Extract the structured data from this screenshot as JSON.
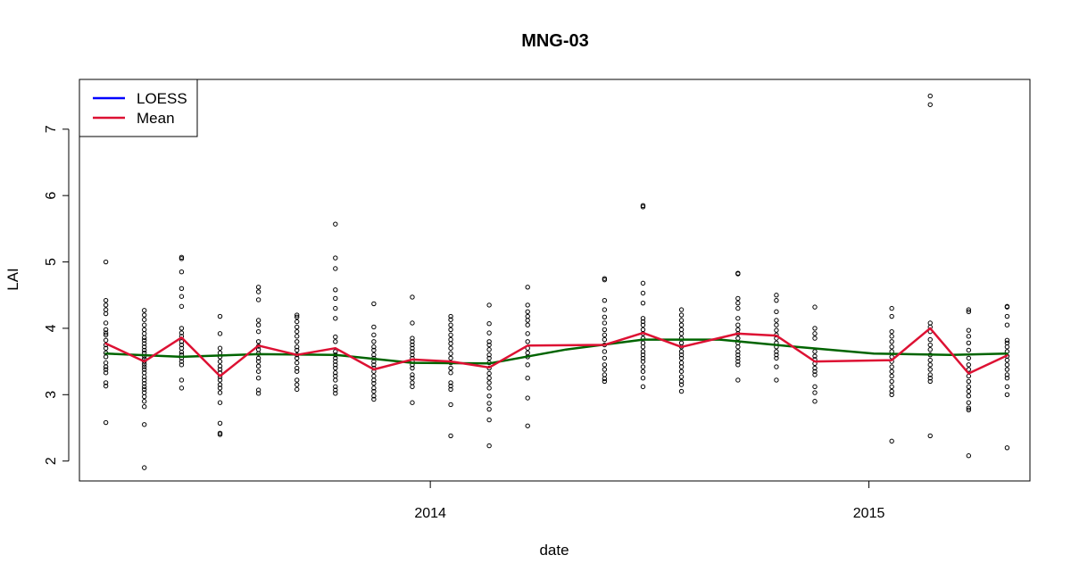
{
  "chart_data": {
    "type": "scatter",
    "title": "MNG-03",
    "xlabel": "date",
    "ylabel": "LAI",
    "x_range": [
      "2013-03-15",
      "2015-05-15"
    ],
    "ylim": [
      1.7,
      7.75
    ],
    "x_ticks": [
      {
        "date": "2014-01-01",
        "label": "2014"
      },
      {
        "date": "2015-01-01",
        "label": "2015"
      }
    ],
    "y_ticks": [
      2,
      3,
      4,
      5,
      6,
      7
    ],
    "grid": false,
    "legend": {
      "position": "top-left",
      "entries": [
        {
          "label": "LOESS",
          "color": "#0000ff"
        },
        {
          "label": "Mean",
          "color": "#dd1133"
        }
      ]
    },
    "colors": {
      "points": "#000000",
      "mean": "#dd1133",
      "loess_line": "#006400"
    },
    "points": [
      {
        "date": "2013-04-06",
        "values": [
          5.0,
          4.42,
          4.35,
          4.28,
          4.22,
          4.08,
          3.98,
          3.93,
          3.9,
          3.82,
          3.75,
          3.7,
          3.63,
          3.57,
          3.48,
          3.42,
          3.38,
          3.33,
          3.18,
          3.13,
          2.58
        ]
      },
      {
        "date": "2013-05-08",
        "values": [
          4.27,
          4.2,
          4.13,
          4.05,
          3.98,
          3.92,
          3.86,
          3.82,
          3.77,
          3.72,
          3.67,
          3.63,
          3.58,
          3.54,
          3.5,
          3.46,
          3.42,
          3.38,
          3.33,
          3.27,
          3.22,
          3.17,
          3.12,
          3.08,
          3.03,
          2.97,
          2.9,
          2.82,
          2.55,
          1.9
        ]
      },
      {
        "date": "2013-06-08",
        "values": [
          5.07,
          5.05,
          4.85,
          4.6,
          4.48,
          4.33,
          4.0,
          3.93,
          3.88,
          3.8,
          3.75,
          3.7,
          3.64,
          3.6,
          3.55,
          3.5,
          3.45,
          3.22,
          3.1
        ]
      },
      {
        "date": "2013-07-10",
        "values": [
          4.18,
          3.92,
          3.7,
          3.63,
          3.57,
          3.5,
          3.43,
          3.38,
          3.33,
          3.27,
          3.22,
          3.15,
          3.1,
          3.03,
          2.88,
          2.57,
          2.42,
          2.4
        ]
      },
      {
        "date": "2013-08-11",
        "values": [
          4.62,
          4.55,
          4.43,
          4.12,
          4.05,
          3.95,
          3.8,
          3.73,
          3.68,
          3.62,
          3.55,
          3.5,
          3.43,
          3.35,
          3.25,
          3.07,
          3.02
        ]
      },
      {
        "date": "2013-09-12",
        "values": [
          4.2,
          4.17,
          4.1,
          4.02,
          3.95,
          3.88,
          3.8,
          3.72,
          3.67,
          3.6,
          3.55,
          3.48,
          3.4,
          3.35,
          3.22,
          3.15,
          3.08
        ]
      },
      {
        "date": "2013-10-14",
        "values": [
          5.57,
          5.06,
          4.9,
          4.58,
          4.45,
          4.3,
          4.15,
          3.87,
          3.8,
          3.65,
          3.6,
          3.55,
          3.5,
          3.45,
          3.4,
          3.33,
          3.28,
          3.22,
          3.12,
          3.07,
          3.02
        ]
      },
      {
        "date": "2013-11-15",
        "values": [
          4.37,
          4.02,
          3.9,
          3.8,
          3.72,
          3.67,
          3.6,
          3.55,
          3.5,
          3.45,
          3.4,
          3.35,
          3.28,
          3.22,
          3.17,
          3.1,
          3.05,
          2.98,
          2.93
        ]
      },
      {
        "date": "2013-12-17",
        "values": [
          4.47,
          4.08,
          3.85,
          3.8,
          3.75,
          3.7,
          3.65,
          3.6,
          3.55,
          3.5,
          3.45,
          3.4,
          3.3,
          3.25,
          3.18,
          3.12,
          2.88
        ]
      },
      {
        "date": "2014-01-18",
        "values": [
          4.18,
          4.13,
          4.05,
          3.98,
          3.9,
          3.83,
          3.77,
          3.7,
          3.62,
          3.55,
          3.48,
          3.4,
          3.33,
          3.18,
          3.13,
          3.08,
          2.85,
          2.38
        ]
      },
      {
        "date": "2014-02-19",
        "values": [
          4.35,
          4.07,
          3.93,
          3.8,
          3.75,
          3.68,
          3.6,
          3.55,
          3.48,
          3.4,
          3.32,
          3.25,
          3.18,
          3.1,
          2.98,
          2.87,
          2.78,
          2.62,
          2.23
        ]
      },
      {
        "date": "2014-03-23",
        "values": [
          4.62,
          4.35,
          4.25,
          4.18,
          4.12,
          4.05,
          3.92,
          3.8,
          3.7,
          3.63,
          3.57,
          3.45,
          3.25,
          2.95,
          2.53
        ]
      },
      {
        "date": "2014-05-26",
        "values": [
          4.75,
          4.73,
          4.42,
          4.28,
          4.17,
          4.08,
          3.98,
          3.9,
          3.83,
          3.75,
          3.65,
          3.55,
          3.45,
          3.38,
          3.3,
          3.24,
          3.2
        ]
      },
      {
        "date": "2014-06-27",
        "values": [
          5.85,
          5.83,
          4.68,
          4.53,
          4.38,
          4.15,
          4.1,
          4.05,
          3.98,
          3.92,
          3.85,
          3.78,
          3.72,
          3.65,
          3.6,
          3.55,
          3.5,
          3.42,
          3.35,
          3.25,
          3.12
        ]
      },
      {
        "date": "2014-07-29",
        "values": [
          4.28,
          4.2,
          4.12,
          4.05,
          3.98,
          3.92,
          3.85,
          3.78,
          3.72,
          3.65,
          3.6,
          3.55,
          3.48,
          3.42,
          3.35,
          3.27,
          3.2,
          3.15,
          3.05
        ]
      },
      {
        "date": "2014-09-14",
        "values": [
          4.83,
          4.82,
          4.45,
          4.38,
          4.3,
          4.15,
          4.05,
          3.98,
          3.92,
          3.85,
          3.78,
          3.72,
          3.65,
          3.6,
          3.55,
          3.5,
          3.45,
          3.22
        ]
      },
      {
        "date": "2014-10-16",
        "values": [
          4.5,
          4.42,
          4.25,
          4.12,
          4.05,
          3.97,
          3.9,
          3.85,
          3.78,
          3.72,
          3.65,
          3.6,
          3.55,
          3.42,
          3.22
        ]
      },
      {
        "date": "2014-11-17",
        "values": [
          4.32,
          4.0,
          3.92,
          3.85,
          3.65,
          3.58,
          3.53,
          3.47,
          3.4,
          3.35,
          3.3,
          3.12,
          3.03,
          2.9
        ]
      },
      {
        "date": "2015-01-20",
        "values": [
          4.3,
          4.18,
          3.95,
          3.88,
          3.8,
          3.72,
          3.65,
          3.57,
          3.5,
          3.42,
          3.35,
          3.28,
          3.2,
          3.12,
          3.05,
          3.0,
          2.3
        ]
      },
      {
        "date": "2015-02-21",
        "values": [
          7.5,
          7.37,
          4.08,
          4.02,
          3.95,
          3.83,
          3.75,
          3.68,
          3.6,
          3.52,
          3.45,
          3.38,
          3.3,
          3.25,
          3.2,
          2.38
        ]
      },
      {
        "date": "2015-03-25",
        "values": [
          4.28,
          4.25,
          3.97,
          3.88,
          3.78,
          3.67,
          3.55,
          3.45,
          3.38,
          3.28,
          3.2,
          3.12,
          3.05,
          2.98,
          2.88,
          2.8,
          2.77,
          2.08
        ]
      },
      {
        "date": "2015-04-26",
        "values": [
          4.33,
          4.32,
          4.18,
          4.05,
          3.82,
          3.78,
          3.72,
          3.65,
          3.58,
          3.52,
          3.45,
          3.38,
          3.3,
          3.25,
          3.12,
          3.0,
          2.2
        ]
      }
    ],
    "series": [
      {
        "name": "Mean",
        "role": "mean",
        "dates": [
          "2013-04-06",
          "2013-05-08",
          "2013-06-08",
          "2013-07-10",
          "2013-08-11",
          "2013-09-12",
          "2013-10-14",
          "2013-11-15",
          "2013-12-17",
          "2014-01-18",
          "2014-02-19",
          "2014-03-23",
          "2014-05-26",
          "2014-06-27",
          "2014-07-29",
          "2014-09-14",
          "2014-10-16",
          "2014-11-17",
          "2015-01-20",
          "2015-02-21",
          "2015-03-25",
          "2015-04-26"
        ],
        "values": [
          3.77,
          3.5,
          3.86,
          3.28,
          3.74,
          3.6,
          3.7,
          3.38,
          3.53,
          3.5,
          3.41,
          3.74,
          3.75,
          3.93,
          3.72,
          3.92,
          3.89,
          3.5,
          3.52,
          4.0,
          3.32,
          3.59
        ]
      },
      {
        "role": "smooth",
        "dates": [
          "2013-04-06",
          "2013-06-08",
          "2013-08-11",
          "2013-10-14",
          "2013-12-17",
          "2014-02-19",
          "2014-04-24",
          "2014-06-27",
          "2014-08-30",
          "2014-11-02",
          "2015-01-05",
          "2015-03-10",
          "2015-04-26"
        ],
        "values": [
          3.62,
          3.57,
          3.61,
          3.6,
          3.48,
          3.47,
          3.68,
          3.83,
          3.83,
          3.72,
          3.62,
          3.6,
          3.62
        ]
      }
    ]
  }
}
